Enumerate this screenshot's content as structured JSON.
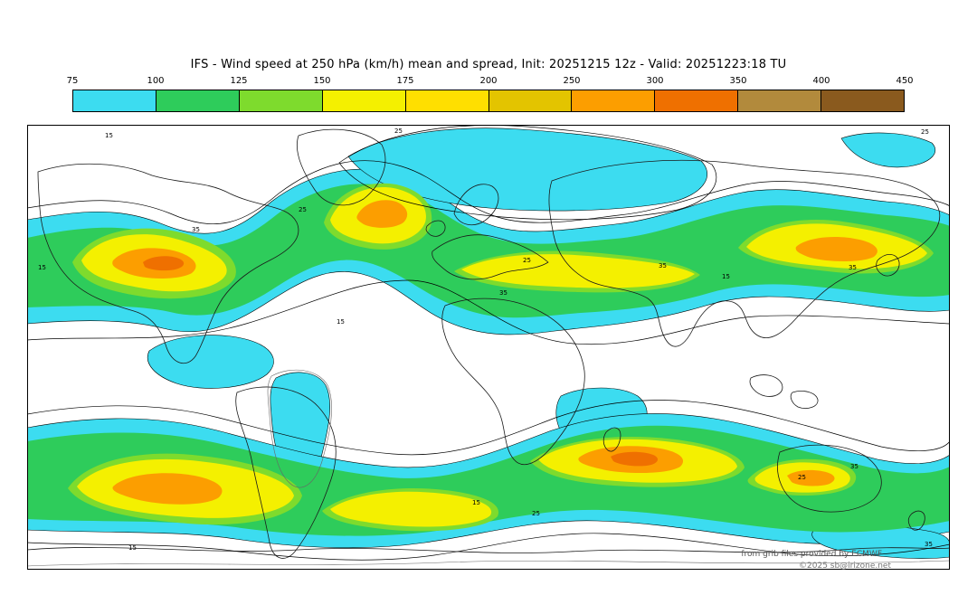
{
  "title": "IFS - Wind speed at 250 hPa (km/h) mean and spread, Init: 20251215 12z - Valid: 20251223:18 TU",
  "colorbar": {
    "ticks": [
      "75",
      "100",
      "125",
      "150",
      "175",
      "200",
      "250",
      "300",
      "350",
      "400",
      "450"
    ],
    "colors": [
      "#3CDCF0",
      "#2ECC5B",
      "#7EDB2D",
      "#F4F000",
      "#FFDF00",
      "#E3C400",
      "#FC9E00",
      "#EF7000",
      "#B28A3C",
      "#8A5A1E"
    ]
  },
  "map": {
    "contour_labels": [
      "15",
      "25",
      "35"
    ],
    "background": "#FFFFFF",
    "coastline_color": "#1A1A1A",
    "contour_color": "#000000"
  },
  "attribution": {
    "line1": "from grib files provided by ECMWF",
    "line2": "©2025 sb@irizone.net"
  },
  "chart_data": {
    "type": "heatmap",
    "title": "IFS - Wind speed at 250 hPa (km/h) mean and spread, Init: 20251215 12z - Valid: 20251223:18 TU",
    "model": "IFS",
    "variable": "Wind speed at 250 hPa",
    "units": "km/h",
    "statistic": "mean and spread",
    "init": "20251215 12z",
    "valid": "20251223:18 TU",
    "legend_levels": [
      75,
      100,
      125,
      150,
      175,
      200,
      250,
      300,
      350,
      400,
      450
    ],
    "legend_colors": [
      "#3CDCF0",
      "#2ECC5B",
      "#7EDB2D",
      "#F4F000",
      "#FFDF00",
      "#E3C400",
      "#FC9E00",
      "#EF7000",
      "#B28A3C",
      "#8A5A1E"
    ],
    "spread_contour_levels": [
      15,
      25,
      35
    ],
    "projection": "global lat-lon",
    "features": "jet stream bands in both hemispheres with maxima over North America, North Atlantic, North Pacific and the Southern Ocean"
  }
}
